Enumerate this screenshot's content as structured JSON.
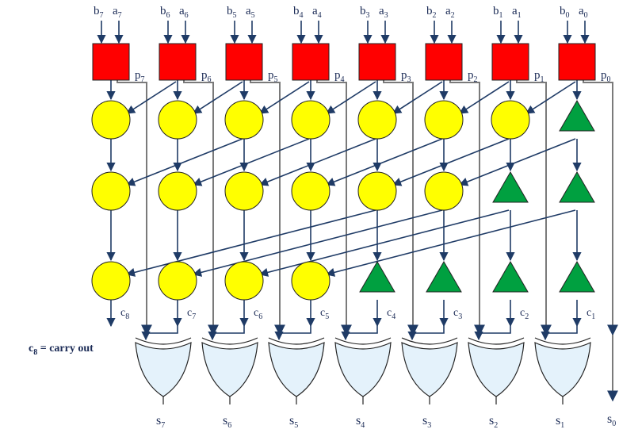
{
  "colors": {
    "pg_box": "#ff0000",
    "black_cell": "#ffff00",
    "buffer": "#00a040",
    "xor_fill": "#e4f2fb",
    "wire": "#7a7a7a",
    "arrow": "#1f3b66",
    "text": "#1a2a55"
  },
  "bits": [
    {
      "b": "b",
      "b_sub": "7",
      "a": "a",
      "a_sub": "7",
      "p": "p",
      "p_sub": "7",
      "s": "s",
      "s_sub": "7"
    },
    {
      "b": "b",
      "b_sub": "6",
      "a": "a",
      "a_sub": "6",
      "p": "p",
      "p_sub": "6",
      "s": "s",
      "s_sub": "6"
    },
    {
      "b": "b",
      "b_sub": "5",
      "a": "a",
      "a_sub": "5",
      "p": "p",
      "p_sub": "5",
      "s": "s",
      "s_sub": "5"
    },
    {
      "b": "b",
      "b_sub": "4",
      "a": "a",
      "a_sub": "4",
      "p": "p",
      "p_sub": "4",
      "s": "s",
      "s_sub": "4"
    },
    {
      "b": "b",
      "b_sub": "3",
      "a": "a",
      "a_sub": "3",
      "p": "p",
      "p_sub": "3",
      "s": "s",
      "s_sub": "3"
    },
    {
      "b": "b",
      "b_sub": "2",
      "a": "a",
      "a_sub": "2",
      "p": "p",
      "p_sub": "2",
      "s": "s",
      "s_sub": "2"
    },
    {
      "b": "b",
      "b_sub": "1",
      "a": "a",
      "a_sub": "1",
      "p": "p",
      "p_sub": "1",
      "s": "s",
      "s_sub": "1"
    },
    {
      "b": "b",
      "b_sub": "0",
      "a": "a",
      "a_sub": "0",
      "p": "p",
      "p_sub": "0",
      "s": "s",
      "s_sub": "0"
    }
  ],
  "carries": [
    {
      "c": "c",
      "c_sub": "8"
    },
    {
      "c": "c",
      "c_sub": "7"
    },
    {
      "c": "c",
      "c_sub": "6"
    },
    {
      "c": "c",
      "c_sub": "5"
    },
    {
      "c": "c",
      "c_sub": "4"
    },
    {
      "c": "c",
      "c_sub": "3"
    },
    {
      "c": "c",
      "c_sub": "2"
    },
    {
      "c": "c",
      "c_sub": "1"
    }
  ],
  "carry_out": {
    "c": "c",
    "c_sub": "8",
    "text": " = carry out"
  },
  "stages": [
    [
      "circle",
      "circle",
      "circle",
      "circle",
      "circle",
      "circle",
      "circle",
      "triangle"
    ],
    [
      "circle",
      "circle",
      "circle",
      "circle",
      "circle",
      "circle",
      "triangle",
      "triangle"
    ],
    [
      "circle",
      "circle",
      "circle",
      "circle",
      "triangle",
      "triangle",
      "triangle",
      "triangle"
    ]
  ],
  "icons": {
    "pg_cell": "red-square",
    "black_cell": "yellow-circle",
    "buffer": "green-triangle",
    "xor": "xor-gate"
  }
}
